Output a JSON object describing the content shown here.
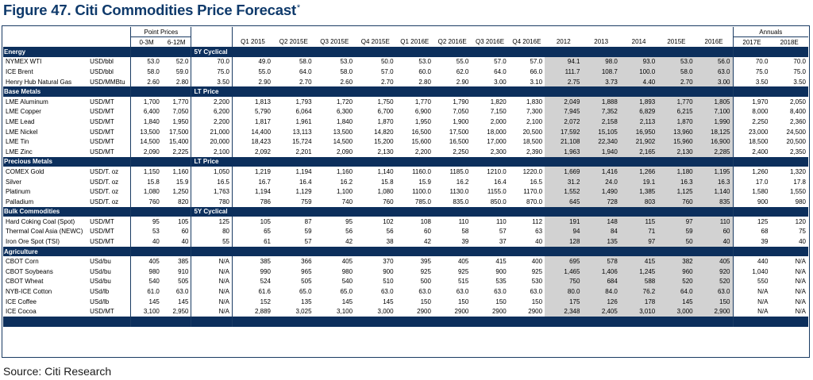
{
  "figure": {
    "title": "Figure 47. Citi Commodities Price Forecast",
    "mark": "*"
  },
  "header": {
    "point_prices": "Point Prices",
    "annuals": "Annuals",
    "columns": [
      "0-3M",
      "6-12M",
      "",
      "Q1 2015",
      "Q2 2015E",
      "Q3 2015E",
      "Q4 2015E",
      "Q1 2016E",
      "Q2 2016E",
      "Q3 2016E",
      "Q4 2016E",
      "2012",
      "2013",
      "2014",
      "2015E",
      "2016E",
      "2017E",
      "2018E"
    ]
  },
  "sections": [
    {
      "name": "Energy",
      "ref_label": "5Y Cyclical",
      "rows": [
        {
          "name": "NYMEX WTI",
          "unit": "USD/bbl",
          "values": [
            "53.0",
            "52.0",
            "70.0",
            "49.0",
            "58.0",
            "53.0",
            "50.0",
            "53.0",
            "55.0",
            "57.0",
            "57.0",
            "94.1",
            "98.0",
            "93.0",
            "53.0",
            "56.0",
            "70.0",
            "70.0"
          ]
        },
        {
          "name": "ICE Brent",
          "unit": "USD/bbl",
          "values": [
            "58.0",
            "59.0",
            "75.0",
            "55.0",
            "64.0",
            "58.0",
            "57.0",
            "60.0",
            "62.0",
            "64.0",
            "66.0",
            "111.7",
            "108.7",
            "100.0",
            "58.0",
            "63.0",
            "75.0",
            "75.0"
          ]
        },
        {
          "name": "Henry Hub Natural Gas",
          "unit": "USD/MMBtu",
          "values": [
            "2.60",
            "2.80",
            "3.50",
            "2.90",
            "2.70",
            "2.60",
            "2.70",
            "2.80",
            "2.90",
            "3.00",
            "3.10",
            "2.75",
            "3.73",
            "4.40",
            "2.70",
            "3.00",
            "3.50",
            "3.50"
          ]
        }
      ]
    },
    {
      "name": "Base Metals",
      "ref_label": "LT Price",
      "rows": [
        {
          "name": "LME Aluminum",
          "unit": "USD/MT",
          "values": [
            "1,700",
            "1,770",
            "2,200",
            "1,813",
            "1,793",
            "1,720",
            "1,750",
            "1,770",
            "1,790",
            "1,820",
            "1,830",
            "2,049",
            "1,888",
            "1,893",
            "1,770",
            "1,805",
            "1,970",
            "2,050"
          ]
        },
        {
          "name": "LME Copper",
          "unit": "USD/MT",
          "values": [
            "6,400",
            "7,050",
            "6,200",
            "5,790",
            "6,064",
            "6,300",
            "6,700",
            "6,900",
            "7,050",
            "7,150",
            "7,300",
            "7,945",
            "7,352",
            "6,829",
            "6,215",
            "7,100",
            "8,000",
            "8,400"
          ]
        },
        {
          "name": "LME Lead",
          "unit": "USD/MT",
          "values": [
            "1,840",
            "1,950",
            "2,200",
            "1,817",
            "1,961",
            "1,840",
            "1,870",
            "1,950",
            "1,900",
            "2,000",
            "2,100",
            "2,072",
            "2,158",
            "2,113",
            "1,870",
            "1,990",
            "2,250",
            "2,360"
          ]
        },
        {
          "name": "LME Nickel",
          "unit": "USD/MT",
          "values": [
            "13,500",
            "17,500",
            "21,000",
            "14,400",
            "13,113",
            "13,500",
            "14,820",
            "16,500",
            "17,500",
            "18,000",
            "20,500",
            "17,592",
            "15,105",
            "16,950",
            "13,960",
            "18,125",
            "23,000",
            "24,500"
          ]
        },
        {
          "name": "LME Tin",
          "unit": "USD/MT",
          "values": [
            "14,500",
            "15,400",
            "20,000",
            "18,423",
            "15,724",
            "14,500",
            "15,200",
            "15,600",
            "16,500",
            "17,000",
            "18,500",
            "21,108",
            "22,340",
            "21,902",
            "15,960",
            "16,900",
            "18,500",
            "20,500"
          ]
        },
        {
          "name": "LME Zinc",
          "unit": "USD/MT",
          "values": [
            "2,090",
            "2,225",
            "2,100",
            "2,092",
            "2,201",
            "2,090",
            "2,130",
            "2,200",
            "2,250",
            "2,300",
            "2,390",
            "1,963",
            "1,940",
            "2,165",
            "2,130",
            "2,285",
            "2,400",
            "2,350"
          ]
        }
      ]
    },
    {
      "name": "Precious Metals",
      "ref_label": "LT Price",
      "rows": [
        {
          "name": "COMEX Gold",
          "unit": "USD/T. oz",
          "values": [
            "1,150",
            "1,160",
            "1,050",
            "1,219",
            "1,194",
            "1,160",
            "1,140",
            "1160.0",
            "1185.0",
            "1210.0",
            "1220.0",
            "1,669",
            "1,416",
            "1,266",
            "1,180",
            "1,195",
            "1,260",
            "1,320"
          ]
        },
        {
          "name": "Silver",
          "unit": "USD/T. oz",
          "values": [
            "15.8",
            "15.9",
            "16.5",
            "16.7",
            "16.4",
            "16.2",
            "15.8",
            "15.9",
            "16.2",
            "16.4",
            "16.5",
            "31.2",
            "24.0",
            "19.1",
            "16.3",
            "16.3",
            "17.0",
            "17.8"
          ]
        },
        {
          "name": "Platinum",
          "unit": "USD/T. oz",
          "values": [
            "1,080",
            "1,250",
            "1,763",
            "1,194",
            "1,129",
            "1,100",
            "1,080",
            "1100.0",
            "1130.0",
            "1155.0",
            "1170.0",
            "1,552",
            "1,490",
            "1,385",
            "1,125",
            "1,140",
            "1,580",
            "1,550"
          ]
        },
        {
          "name": "Palladium",
          "unit": "USD/T. oz",
          "values": [
            "760",
            "820",
            "780",
            "786",
            "759",
            "740",
            "760",
            "785.0",
            "835.0",
            "850.0",
            "870.0",
            "645",
            "728",
            "803",
            "760",
            "835",
            "900",
            "980"
          ]
        }
      ]
    },
    {
      "name": "Bulk Commodities",
      "ref_label": "5Y Cyclical",
      "rows": [
        {
          "name": "Hard Coking Coal (Spot)",
          "unit": "USD/MT",
          "values": [
            "95",
            "105",
            "125",
            "105",
            "87",
            "95",
            "102",
            "108",
            "110",
            "110",
            "112",
            "191",
            "148",
            "115",
            "97",
            "110",
            "125",
            "120"
          ]
        },
        {
          "name": "Thermal Coal Asia (NEWC)",
          "unit": "USD/MT",
          "values": [
            "53",
            "60",
            "80",
            "65",
            "59",
            "56",
            "56",
            "60",
            "58",
            "57",
            "63",
            "94",
            "84",
            "71",
            "59",
            "60",
            "68",
            "75"
          ]
        },
        {
          "name": "Iron Ore Spot (TSI)",
          "unit": "USD/MT",
          "values": [
            "40",
            "40",
            "55",
            "61",
            "57",
            "42",
            "38",
            "42",
            "39",
            "37",
            "40",
            "128",
            "135",
            "97",
            "50",
            "40",
            "39",
            "40"
          ]
        }
      ]
    },
    {
      "name": "Agriculture",
      "ref_label": "",
      "rows": [
        {
          "name": "CBOT Corn",
          "unit": "USd/bu",
          "values": [
            "405",
            "385",
            "N/A",
            "385",
            "366",
            "405",
            "370",
            "395",
            "405",
            "415",
            "400",
            "695",
            "578",
            "415",
            "382",
            "405",
            "440",
            "N/A"
          ]
        },
        {
          "name": "CBOT Soybeans",
          "unit": "USd/bu",
          "values": [
            "980",
            "910",
            "N/A",
            "990",
            "965",
            "980",
            "900",
            "925",
            "925",
            "900",
            "925",
            "1,465",
            "1,406",
            "1,245",
            "960",
            "920",
            "1,040",
            "N/A"
          ]
        },
        {
          "name": "CBOT Wheat",
          "unit": "USd/bu",
          "values": [
            "540",
            "505",
            "N/A",
            "524",
            "505",
            "540",
            "510",
            "500",
            "515",
            "535",
            "530",
            "750",
            "684",
            "588",
            "520",
            "520",
            "550",
            "N/A"
          ]
        },
        {
          "name": "NYB-ICE Cotton",
          "unit": "USd/lb",
          "values": [
            "61.0",
            "63.0",
            "N/A",
            "61.6",
            "65.0",
            "65.0",
            "63.0",
            "63.0",
            "63.0",
            "63.0",
            "63.0",
            "80.0",
            "84.0",
            "76.2",
            "64.0",
            "63.0",
            "N/A",
            "N/A"
          ]
        },
        {
          "name": "ICE Coffee",
          "unit": "USd/lb",
          "values": [
            "145",
            "145",
            "N/A",
            "152",
            "135",
            "145",
            "145",
            "150",
            "150",
            "150",
            "150",
            "175",
            "126",
            "178",
            "145",
            "150",
            "N/A",
            "N/A"
          ]
        },
        {
          "name": "ICE Cocoa",
          "unit": "USD/MT",
          "values": [
            "3,100",
            "2,950",
            "N/A",
            "2,889",
            "3,025",
            "3,100",
            "3,000",
            "2900",
            "2900",
            "2900",
            "2900",
            "2,348",
            "2,405",
            "3,010",
            "3,000",
            "2,900",
            "N/A",
            "N/A"
          ]
        }
      ]
    }
  ],
  "source": "Source: Citi Research"
}
